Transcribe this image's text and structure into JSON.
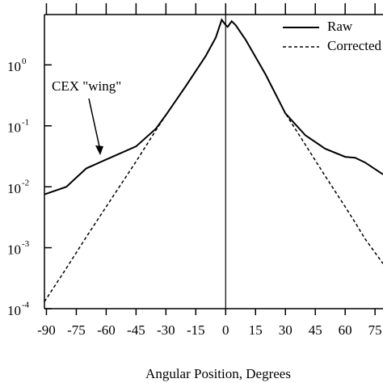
{
  "chart_data": {
    "type": "line",
    "x_label": "Angular Position, Degrees",
    "annotation": "CEX \"wing\"",
    "log_y": true,
    "legend": "top-right",
    "x": [
      -91,
      -80,
      -70,
      -60,
      -45,
      -35,
      -30,
      -20,
      -10,
      -5,
      -2,
      0,
      1,
      3,
      5,
      10,
      20,
      30,
      40,
      50,
      60,
      65,
      70,
      79
    ],
    "series": [
      {
        "name": "Raw",
        "color": "#000000",
        "dash": false,
        "values": [
          0.0075,
          0.01,
          0.02,
          0.028,
          0.046,
          0.09,
          0.15,
          0.45,
          1.4,
          2.8,
          5.5,
          4.5,
          4.2,
          5.2,
          4.5,
          2.6,
          0.7,
          0.16,
          0.07,
          0.042,
          0.031,
          0.03,
          0.025,
          0.016
        ]
      },
      {
        "name": "Corrected",
        "color": "#000000",
        "dash": true,
        "values": [
          0.00013,
          0.00046,
          0.0015,
          0.0047,
          0.026,
          0.085,
          0.15,
          0.45,
          1.4,
          2.8,
          5.5,
          4.5,
          4.2,
          5.2,
          4.5,
          2.6,
          0.7,
          0.16,
          0.049,
          0.015,
          0.0047,
          0.0026,
          0.0014,
          0.00055
        ]
      }
    ],
    "xlim": [
      -91,
      79
    ],
    "xticks": [
      -90,
      -75,
      -60,
      -45,
      -30,
      -15,
      0,
      15,
      30,
      45,
      60,
      75
    ],
    "ylim": [
      0.0001,
      6.7
    ],
    "yticks": [
      {
        "value": 0.0001,
        "label": "10",
        "exponent": "-4"
      },
      {
        "value": 0.001,
        "label": "10",
        "exponent": "-3"
      },
      {
        "value": 0.01,
        "label": "10",
        "exponent": "-2"
      },
      {
        "value": 0.1,
        "label": "10",
        "exponent": "-1"
      },
      {
        "value": 1,
        "label": "10",
        "exponent": "0"
      }
    ],
    "zero_line": 0
  }
}
